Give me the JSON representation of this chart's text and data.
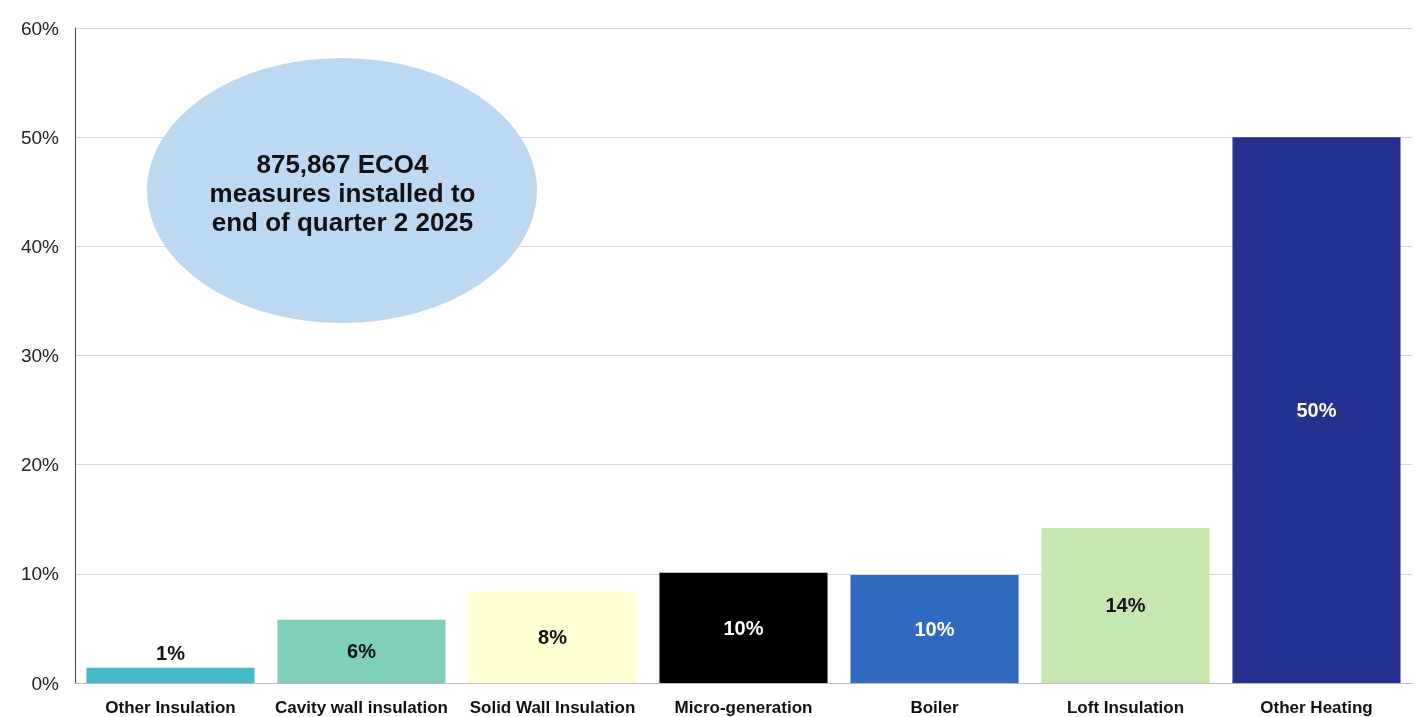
{
  "chart_data": {
    "type": "bar",
    "categories": [
      "Other Insulation",
      "Cavity wall insulation",
      "Solid Wall Insulation",
      "Micro-generation",
      "Boiler",
      "Loft Insulation",
      "Other Heating"
    ],
    "values": [
      1.4,
      5.8,
      8.4,
      10.1,
      9.9,
      14.2,
      50
    ],
    "value_labels": [
      "1%",
      "6%",
      "8%",
      "10%",
      "10%",
      "14%",
      "50%"
    ],
    "colors": [
      "#45b8c8",
      "#7fcfba",
      "#ffffd4",
      "#000000",
      "#2f69c0",
      "#c6e8b0",
      "#24318f"
    ],
    "ylim": [
      0,
      60
    ],
    "yticks": [
      {
        "value": 0,
        "label": "0%"
      },
      {
        "value": 10,
        "label": "10%"
      },
      {
        "value": 20,
        "label": "20%"
      },
      {
        "value": 30,
        "label": "30%"
      },
      {
        "value": 40,
        "label": "40%"
      },
      {
        "value": 50,
        "label": "50%"
      },
      {
        "value": 60,
        "label": "60%"
      }
    ],
    "grid": "y",
    "annotations": [
      "875,867 ECO4 measures installed to end of quarter 2 2025"
    ]
  }
}
